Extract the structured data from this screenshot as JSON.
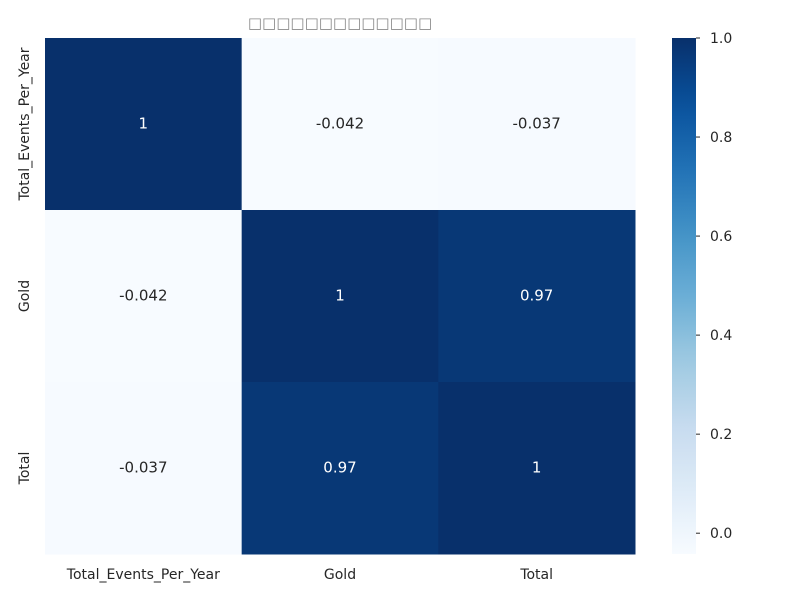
{
  "chart_data": {
    "type": "heatmap",
    "title": "□□□□□□□□□□□□□",
    "rows": [
      "Total_Events_Per_Year",
      "Gold",
      "Total"
    ],
    "columns": [
      "Total_Events_Per_Year",
      "Gold",
      "Total"
    ],
    "values": [
      [
        1,
        -0.042,
        -0.037
      ],
      [
        -0.042,
        1,
        0.97
      ],
      [
        -0.037,
        0.97,
        1
      ]
    ],
    "annotations": [
      [
        "1",
        "-0.042",
        "-0.037"
      ],
      [
        "-0.042",
        "1",
        "0.97"
      ],
      [
        "-0.037",
        "0.97",
        "1"
      ]
    ],
    "colormap": "Blues",
    "vmin": -0.042,
    "vmax": 1,
    "colorbar_ticks": [
      "0.0",
      "0.2",
      "0.4",
      "0.6",
      "0.8",
      "1.0"
    ],
    "colorbar_tick_values": [
      0.0,
      0.2,
      0.4,
      0.6,
      0.8,
      1.0
    ],
    "grid": false,
    "colorbar_position": "right"
  }
}
